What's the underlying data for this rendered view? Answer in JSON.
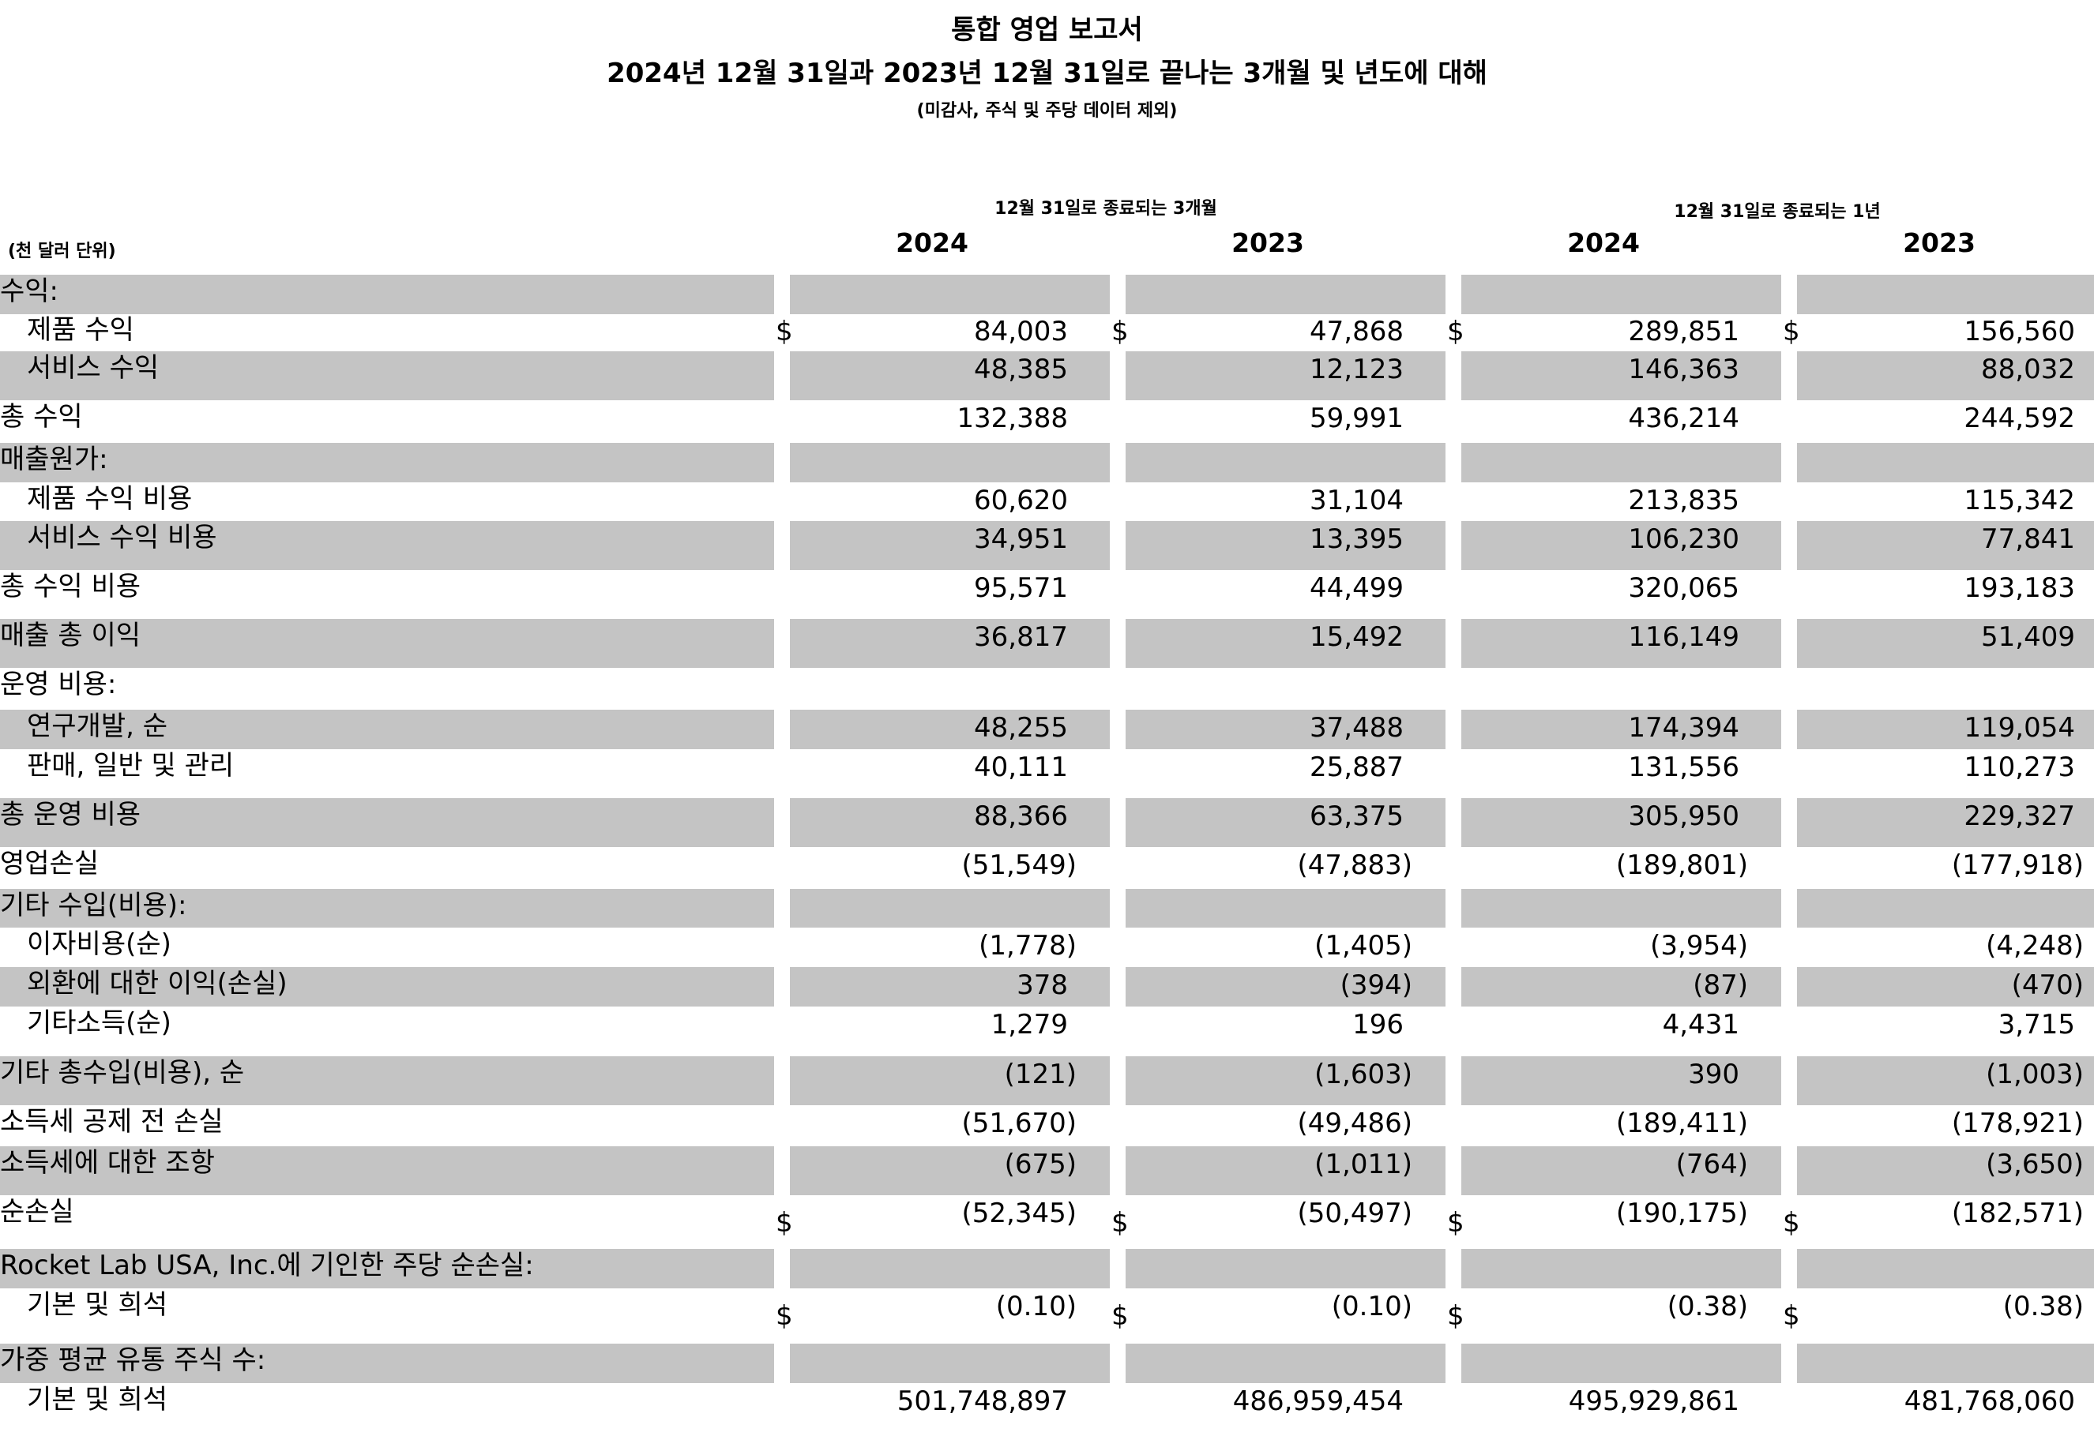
{
  "header": {
    "title": "통합 영업 보고서",
    "subtitle": "2024년 12월 31일과 2023년 12월 31일로 끝나는 3개월 및 년도에 대해",
    "note": "(미감사, 주식 및 주당 데이터 제외)",
    "unit": "(천 달러 단위)",
    "group_quarter": "12월 31일로 종료되는 3개월",
    "group_year": "12월 31일로 종료되는 1년",
    "years": [
      "2024",
      "2023",
      "2024",
      "2023"
    ]
  },
  "currency_symbol": "$",
  "colors": {
    "shade": "#c4c4c4",
    "background": "#ffffff",
    "text": "#000000"
  },
  "rows": [
    {
      "label": "수익:",
      "indent": false,
      "shaded": true,
      "values": [
        "",
        "",
        "",
        ""
      ],
      "dollar": false
    },
    {
      "label": "제품 수익",
      "indent": true,
      "shaded": false,
      "values": [
        "84,003",
        "47,868",
        "289,851",
        "156,560"
      ],
      "dollar": true
    },
    {
      "label": "서비스 수익",
      "indent": true,
      "shaded": true,
      "values": [
        "48,385",
        "12,123",
        "146,363",
        "88,032"
      ],
      "dollar": false
    },
    {
      "label": "총 수익",
      "indent": false,
      "shaded": false,
      "values": [
        "132,388",
        "59,991",
        "436,214",
        "244,592"
      ],
      "dollar": false
    },
    {
      "label": "매출원가:",
      "indent": false,
      "shaded": true,
      "values": [
        "",
        "",
        "",
        ""
      ],
      "dollar": false
    },
    {
      "label": "제품 수익 비용",
      "indent": true,
      "shaded": false,
      "values": [
        "60,620",
        "31,104",
        "213,835",
        "115,342"
      ],
      "dollar": false
    },
    {
      "label": "서비스 수익 비용",
      "indent": true,
      "shaded": true,
      "values": [
        "34,951",
        "13,395",
        "106,230",
        "77,841"
      ],
      "dollar": false
    },
    {
      "label": "총 수익 비용",
      "indent": false,
      "shaded": false,
      "values": [
        "95,571",
        "44,499",
        "320,065",
        "193,183"
      ],
      "dollar": false
    },
    {
      "label": "매출 총 이익",
      "indent": false,
      "shaded": true,
      "values": [
        "36,817",
        "15,492",
        "116,149",
        "51,409"
      ],
      "dollar": false
    },
    {
      "label": "운영 비용:",
      "indent": false,
      "shaded": false,
      "values": [
        "",
        "",
        "",
        ""
      ],
      "dollar": false
    },
    {
      "label": "연구개발, 순",
      "indent": true,
      "shaded": true,
      "values": [
        "48,255",
        "37,488",
        "174,394",
        "119,054"
      ],
      "dollar": false
    },
    {
      "label": "판매, 일반 및 관리",
      "indent": true,
      "shaded": false,
      "values": [
        "40,111",
        "25,887",
        "131,556",
        "110,273"
      ],
      "dollar": false
    },
    {
      "label": "총 운영 비용",
      "indent": false,
      "shaded": true,
      "values": [
        "88,366",
        "63,375",
        "305,950",
        "229,327"
      ],
      "dollar": false
    },
    {
      "label": "영업손실",
      "indent": false,
      "shaded": false,
      "values": [
        "(51,549)",
        "(47,883)",
        "(189,801)",
        "(177,918)"
      ],
      "dollar": false
    },
    {
      "label": "기타 수입(비용):",
      "indent": false,
      "shaded": true,
      "values": [
        "",
        "",
        "",
        ""
      ],
      "dollar": false
    },
    {
      "label": "이자비용(순)",
      "indent": true,
      "shaded": false,
      "values": [
        "(1,778)",
        "(1,405)",
        "(3,954)",
        "(4,248)"
      ],
      "dollar": false
    },
    {
      "label": "외환에 대한 이익(손실)",
      "indent": true,
      "shaded": true,
      "values": [
        "378",
        "(394)",
        "(87)",
        "(470)"
      ],
      "dollar": false
    },
    {
      "label": "기타소득(순)",
      "indent": true,
      "shaded": false,
      "values": [
        "1,279",
        "196",
        "4,431",
        "3,715"
      ],
      "dollar": false
    },
    {
      "label": "기타 총수입(비용), 순",
      "indent": false,
      "shaded": true,
      "values": [
        "(121)",
        "(1,603)",
        "390",
        "(1,003)"
      ],
      "dollar": false
    },
    {
      "label": "소득세 공제 전 손실",
      "indent": false,
      "shaded": false,
      "values": [
        "(51,670)",
        "(49,486)",
        "(189,411)",
        "(178,921)"
      ],
      "dollar": false
    },
    {
      "label": "소득세에 대한 조항",
      "indent": false,
      "shaded": true,
      "values": [
        "(675)",
        "(1,011)",
        "(764)",
        "(3,650)"
      ],
      "dollar": false
    },
    {
      "label": "순손실",
      "indent": false,
      "shaded": false,
      "values": [
        "(52,345)",
        "(50,497)",
        "(190,175)",
        "(182,571)"
      ],
      "dollar": true
    },
    {
      "label": "Rocket Lab USA, Inc.에 기인한 주당 순손실:",
      "indent": false,
      "shaded": true,
      "values": [
        "",
        "",
        "",
        ""
      ],
      "dollar": false
    },
    {
      "label": "기본 및 희석",
      "indent": true,
      "shaded": false,
      "values": [
        "(0.10)",
        "(0.10)",
        "(0.38)",
        "(0.38)"
      ],
      "dollar": true
    },
    {
      "label": "가중 평균 유통 주식 수:",
      "indent": false,
      "shaded": true,
      "values": [
        "",
        "",
        "",
        ""
      ],
      "dollar": false
    },
    {
      "label": "기본 및 희석",
      "indent": true,
      "shaded": false,
      "values": [
        "501,748,897",
        "486,959,454",
        "495,929,861",
        "481,768,060"
      ],
      "dollar": false
    }
  ]
}
